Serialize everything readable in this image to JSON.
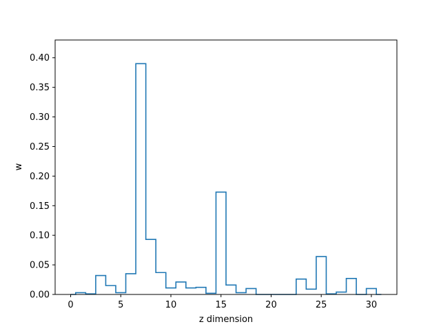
{
  "chart_data": {
    "type": "step",
    "title": "",
    "xlabel": "z dimension",
    "ylabel": "w",
    "xlim": [
      -1.55,
      32.55
    ],
    "ylim": [
      0,
      0.43
    ],
    "xticks": [
      0,
      5,
      10,
      15,
      20,
      25,
      30
    ],
    "xtick_labels": [
      "0",
      "5",
      "10",
      "15",
      "20",
      "25",
      "30"
    ],
    "yticks": [
      0,
      0.05,
      0.1,
      0.15,
      0.2,
      0.25,
      0.3,
      0.35,
      0.4
    ],
    "ytick_labels": [
      "0.00",
      "0.05",
      "0.10",
      "0.15",
      "0.20",
      "0.25",
      "0.30",
      "0.35",
      "0.40"
    ],
    "grid": false,
    "line_color": "#1f77b4",
    "series": [
      {
        "x": [
          0,
          1,
          2,
          3,
          4,
          5,
          6,
          7,
          8,
          9,
          10,
          11,
          12,
          13,
          14,
          15,
          16,
          17,
          18,
          19,
          20,
          21,
          22,
          23,
          24,
          25,
          26,
          27,
          28,
          29,
          30,
          31
        ],
        "values": [
          0.0,
          0.003,
          0.001,
          0.032,
          0.015,
          0.003,
          0.035,
          0.39,
          0.093,
          0.037,
          0.011,
          0.021,
          0.011,
          0.012,
          0.002,
          0.173,
          0.016,
          0.003,
          0.01,
          0.0,
          0.0,
          0.0,
          0.0,
          0.026,
          0.009,
          0.064,
          0.001,
          0.004,
          0.027,
          0.0,
          0.01,
          0.0
        ]
      }
    ]
  }
}
